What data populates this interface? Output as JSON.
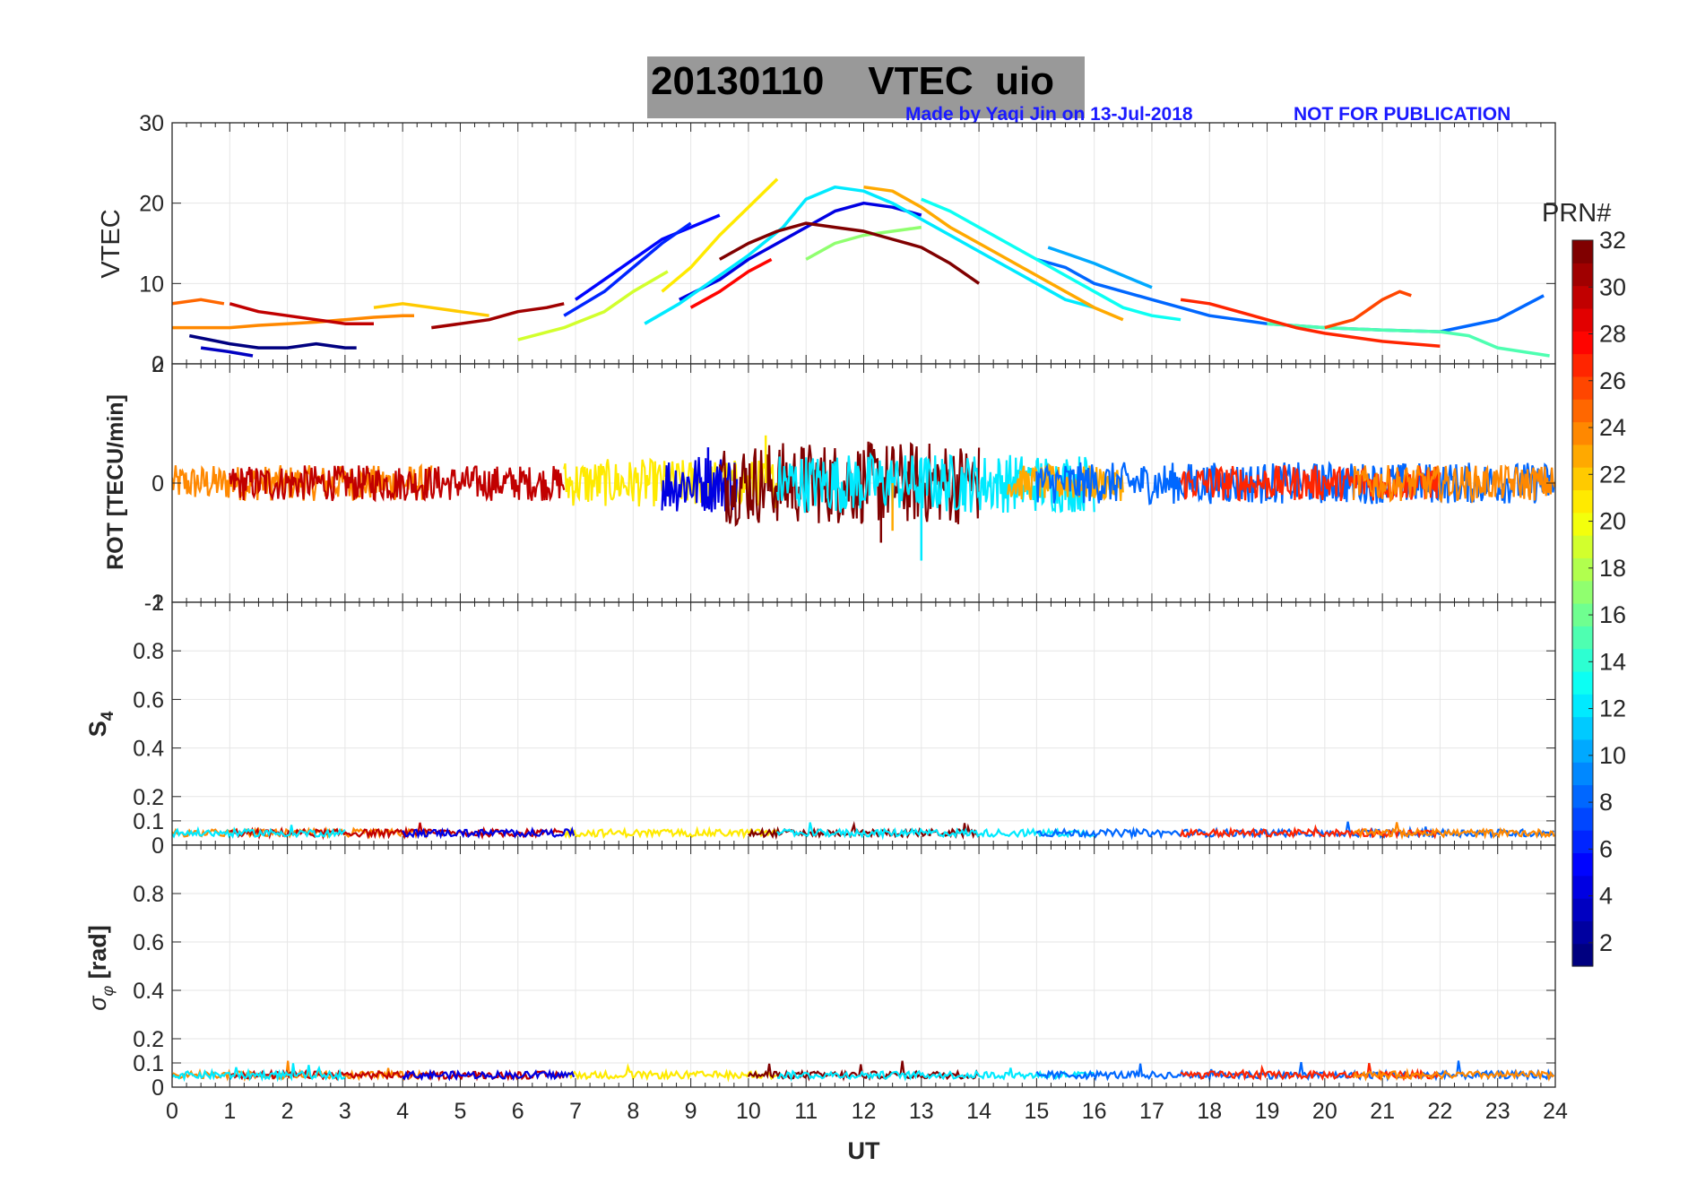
{
  "title": {
    "date": "20130110",
    "product": "VTEC",
    "station": "uio"
  },
  "credits": {
    "made_by": "Made by Yaqi Jin on 13-Jul-2018",
    "notice": "NOT FOR PUBLICATION"
  },
  "colors": {
    "title_bg": "#999999",
    "credit_text": "#1a1aff",
    "grid": "#e6e6e6"
  },
  "chart_data": [
    {
      "type": "line",
      "panel": "vtec",
      "ylabel": "VTEC",
      "ylim": [
        0,
        30
      ],
      "yticks": [
        0,
        10,
        20,
        30
      ],
      "xlim": [
        0,
        24
      ],
      "series": [
        {
          "prn": 1,
          "x": [
            0.3,
            1.0,
            1.5,
            2.0,
            2.5,
            3.0,
            3.2
          ],
          "y": [
            3.5,
            2.5,
            2.0,
            2.0,
            2.5,
            2.0,
            2.0
          ]
        },
        {
          "prn": 3,
          "x": [
            0.5,
            1.0,
            1.4
          ],
          "y": [
            2.0,
            1.5,
            1.0
          ]
        },
        {
          "prn": 4,
          "x": [
            8.8,
            9.5,
            10.0,
            10.5,
            11.0,
            11.5,
            12.0,
            12.5,
            13.0
          ],
          "y": [
            8.0,
            10.5,
            13.0,
            15.0,
            17.0,
            19.0,
            20.0,
            19.5,
            18.5
          ]
        },
        {
          "prn": 5,
          "x": [
            7.0,
            7.5,
            8.0,
            8.5,
            9.0,
            9.5
          ],
          "y": [
            8.0,
            10.5,
            13.0,
            15.5,
            17.0,
            18.5
          ]
        },
        {
          "prn": 6,
          "x": [
            6.8,
            7.5,
            8.0,
            8.5,
            9.0
          ],
          "y": [
            6.0,
            9.0,
            12.0,
            15.0,
            17.5
          ]
        },
        {
          "prn": 8,
          "x": [
            15.0,
            15.5,
            16.0,
            16.5,
            17.0,
            17.5,
            18.0,
            18.5,
            19.0,
            20.0,
            21.0,
            22.0,
            23.0,
            23.8
          ],
          "y": [
            13.0,
            12.0,
            10.0,
            9.0,
            8.0,
            7.0,
            6.0,
            5.5,
            5.0,
            4.5,
            4.2,
            4.0,
            5.5,
            8.5
          ]
        },
        {
          "prn": 10,
          "x": [
            15.2,
            15.6,
            16.0,
            16.5,
            17.0
          ],
          "y": [
            14.5,
            13.5,
            12.5,
            11.0,
            9.5
          ]
        },
        {
          "prn": 12,
          "x": [
            8.2,
            8.8,
            9.4,
            10.0,
            10.6,
            11.0,
            11.5,
            12.0,
            12.5,
            13.0,
            13.5,
            14.0,
            14.5,
            15.0,
            15.5,
            16.0
          ],
          "y": [
            5.0,
            7.5,
            10.5,
            13.5,
            17.0,
            20.5,
            22.0,
            21.5,
            20.0,
            18.0,
            16.0,
            14.0,
            12.0,
            10.0,
            8.0,
            7.0
          ]
        },
        {
          "prn": 13,
          "x": [
            13.0,
            13.5,
            14.0,
            14.5,
            15.0,
            15.5,
            16.0,
            16.5,
            17.0,
            17.5
          ],
          "y": [
            20.5,
            19.0,
            17.0,
            15.0,
            13.0,
            11.0,
            9.0,
            7.0,
            6.0,
            5.5
          ]
        },
        {
          "prn": 15,
          "x": [
            19.0,
            20.0,
            21.0,
            22.0,
            22.5,
            23.0,
            23.9
          ],
          "y": [
            5.0,
            4.5,
            4.2,
            4.0,
            3.5,
            2.0,
            1.0
          ]
        },
        {
          "prn": 17,
          "x": [
            11.0,
            11.5,
            12.0,
            12.5,
            13.0
          ],
          "y": [
            13.0,
            15.0,
            16.0,
            16.5,
            17.0
          ]
        },
        {
          "prn": 19,
          "x": [
            6.0,
            6.8,
            7.5,
            8.0,
            8.6
          ],
          "y": [
            3.0,
            4.5,
            6.5,
            9.0,
            11.5
          ]
        },
        {
          "prn": 21,
          "x": [
            8.5,
            9.0,
            9.5,
            10.0,
            10.5
          ],
          "y": [
            9.0,
            12.0,
            16.0,
            19.5,
            23.0
          ]
        },
        {
          "prn": 22,
          "x": [
            3.5,
            4.0,
            4.5,
            5.0,
            5.5
          ],
          "y": [
            7.0,
            7.5,
            7.0,
            6.5,
            6.0
          ]
        },
        {
          "prn": 23,
          "x": [
            12.0,
            12.5,
            13.0,
            13.5,
            14.0,
            14.5,
            15.0,
            15.5,
            16.0,
            16.5
          ],
          "y": [
            22.0,
            21.5,
            19.5,
            17.0,
            15.0,
            13.0,
            11.0,
            9.0,
            7.0,
            5.5
          ]
        },
        {
          "prn": 24,
          "x": [
            0.0,
            0.5,
            1.0,
            1.5,
            2.0,
            2.5,
            3.0,
            3.5,
            4.0,
            4.2
          ],
          "y": [
            4.5,
            4.5,
            4.5,
            4.8,
            5.0,
            5.2,
            5.5,
            5.8,
            6.0,
            6.0
          ]
        },
        {
          "prn": 25,
          "x": [
            0.0,
            0.5,
            0.9
          ],
          "y": [
            7.5,
            8.0,
            7.5
          ]
        },
        {
          "prn": 26,
          "x": [
            20.0,
            20.5,
            21.0,
            21.3,
            21.5
          ],
          "y": [
            4.5,
            5.5,
            8.0,
            9.0,
            8.5
          ]
        },
        {
          "prn": 27,
          "x": [
            17.5,
            18.0,
            18.5,
            19.0,
            19.5,
            20.0,
            20.5,
            21.0,
            21.5,
            22.0
          ],
          "y": [
            8.0,
            7.5,
            6.5,
            5.5,
            4.5,
            3.8,
            3.3,
            2.8,
            2.5,
            2.2
          ]
        },
        {
          "prn": 28,
          "x": [
            9.0,
            9.5,
            10.0,
            10.4
          ],
          "y": [
            7.0,
            9.0,
            11.5,
            13.0
          ]
        },
        {
          "prn": 30,
          "x": [
            1.0,
            1.5,
            2.0,
            2.5,
            3.0,
            3.5
          ],
          "y": [
            7.5,
            6.5,
            6.0,
            5.5,
            5.0,
            5.0
          ]
        },
        {
          "prn": 31,
          "x": [
            4.5,
            5.0,
            5.5,
            6.0,
            6.5,
            6.8
          ],
          "y": [
            4.5,
            5.0,
            5.5,
            6.5,
            7.0,
            7.5
          ]
        },
        {
          "prn": 32,
          "x": [
            9.5,
            10.0,
            10.5,
            11.0,
            11.5,
            12.0,
            12.5,
            13.0,
            13.5,
            14.0
          ],
          "y": [
            13.0,
            15.0,
            16.5,
            17.5,
            17.0,
            16.5,
            15.5,
            14.5,
            12.5,
            10.0
          ]
        }
      ]
    },
    {
      "type": "line",
      "panel": "rot",
      "ylabel": "ROT [TECU/min]",
      "ylim": [
        -2,
        2
      ],
      "yticks": [
        -2,
        0,
        2
      ],
      "ticklabels_shown": [
        "-2",
        "0",
        "2"
      ],
      "xlim": [
        0,
        24
      ],
      "series": [
        {
          "prn": 24,
          "x": [
            0.0,
            4.5
          ],
          "amplitude": 0.3
        },
        {
          "prn": 30,
          "x": [
            1.0,
            6.8
          ],
          "amplitude": 0.3
        },
        {
          "prn": 21,
          "x": [
            6.8,
            10.5
          ],
          "amplitude": 0.4
        },
        {
          "prn": 4,
          "x": [
            8.5,
            9.8
          ],
          "amplitude": 0.5
        },
        {
          "prn": 32,
          "x": [
            9.5,
            14.0
          ],
          "amplitude": 0.7
        },
        {
          "prn": 12,
          "x": [
            10.5,
            16.0
          ],
          "amplitude": 0.5
        },
        {
          "prn": 23,
          "x": [
            14.5,
            16.5
          ],
          "amplitude": 0.3
        },
        {
          "prn": 8,
          "x": [
            15.0,
            24.0
          ],
          "amplitude": 0.35
        },
        {
          "prn": 27,
          "x": [
            17.5,
            22.0
          ],
          "amplitude": 0.3
        },
        {
          "prn": 24,
          "x": [
            20.5,
            24.0
          ],
          "amplitude": 0.3
        }
      ],
      "notable_extremes": [
        {
          "prn": 12,
          "x": 13.0,
          "y": -1.3
        },
        {
          "prn": 32,
          "x": 12.3,
          "y": -1.0
        },
        {
          "prn": 23,
          "x": 12.5,
          "y": -0.8
        },
        {
          "prn": 21,
          "x": 10.3,
          "y": 0.8
        },
        {
          "prn": 4,
          "x": 9.3,
          "y": 0.6
        }
      ]
    },
    {
      "type": "line",
      "panel": "s4",
      "ylabel": "S4",
      "ylim": [
        0,
        1
      ],
      "yticks": [
        0,
        0.1,
        0.2,
        0.4,
        0.6,
        0.8,
        1
      ],
      "ticklabels_shown": [
        "0",
        "0.1",
        "0.2",
        "0.4",
        "0.6",
        "0.8",
        "1"
      ],
      "xlim": [
        0,
        24
      ],
      "typical_value": 0.05,
      "max_value": 0.1
    },
    {
      "type": "line",
      "panel": "sigma_phi",
      "ylabel": "σφ [rad]",
      "ylim": [
        0,
        1
      ],
      "yticks": [
        0,
        0.1,
        0.2,
        0.4,
        0.6,
        0.8,
        1
      ],
      "ticklabels_shown": [
        "0",
        "0.1",
        "0.2",
        "0.4",
        "0.6",
        "0.8"
      ],
      "xlim": [
        0,
        24
      ],
      "xlabel": "UT",
      "xticks": [
        0,
        1,
        2,
        3,
        4,
        5,
        6,
        7,
        8,
        9,
        10,
        11,
        12,
        13,
        14,
        15,
        16,
        17,
        18,
        19,
        20,
        21,
        22,
        23,
        24
      ],
      "typical_value": 0.05,
      "max_value": 0.11
    }
  ],
  "colorbar": {
    "label": "PRN#",
    "range": [
      1,
      32
    ],
    "ticks": [
      2,
      4,
      6,
      8,
      10,
      12,
      14,
      16,
      18,
      20,
      22,
      24,
      26,
      28,
      30,
      32
    ],
    "colormap": "jet"
  },
  "labels": {
    "ylabel_s4_main": "S",
    "ylabel_s4_sub": "4",
    "ylabel_sigma_main": "σ",
    "ylabel_sigma_sub": "φ",
    "ylabel_sigma_unit": "[rad]"
  }
}
